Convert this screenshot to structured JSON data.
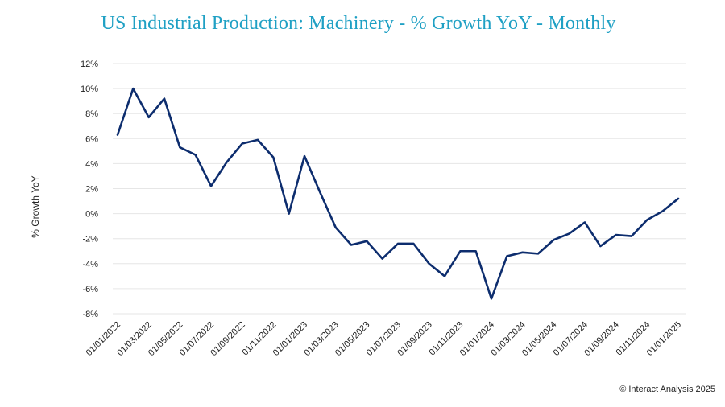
{
  "chart_data": {
    "type": "line",
    "title": "US Industrial Production: Machinery - % Growth YoY - Monthly",
    "xlabel": "",
    "ylabel": "% Growth YoY",
    "ylim": [
      -8,
      12
    ],
    "y_ticks": [
      -8,
      -6,
      -4,
      -2,
      0,
      2,
      4,
      6,
      8,
      10,
      12
    ],
    "y_tick_format": "percent",
    "grid": true,
    "x_tick_labels": [
      "01/01/2022",
      "01/03/2022",
      "01/05/2022",
      "01/07/2022",
      "01/09/2022",
      "01/11/2022",
      "01/01/2023",
      "01/03/2023",
      "01/05/2023",
      "01/07/2023",
      "01/09/2023",
      "01/11/2023",
      "01/01/2024",
      "01/03/2024",
      "01/05/2024",
      "01/07/2024",
      "01/09/2024",
      "01/11/2024",
      "01/01/2025"
    ],
    "line_color": "#0d2d6e",
    "series": [
      {
        "values": [
          6.3,
          10.0,
          7.7,
          9.2,
          5.3,
          4.7,
          2.2,
          4.1,
          5.6,
          5.9,
          4.5,
          0.0,
          4.6,
          1.7,
          -1.1,
          -2.5,
          -2.2,
          -3.6,
          -2.4,
          -2.4,
          -4.0,
          -5.0,
          -3.0,
          -3.0,
          -6.8,
          -3.4,
          -3.1,
          -3.2,
          -2.1,
          -1.6,
          -0.7,
          -2.6,
          -1.7,
          -1.8,
          -0.5,
          0.2,
          1.2
        ]
      }
    ]
  },
  "footer": {
    "copyright": "© Interact Analysis 2025"
  }
}
